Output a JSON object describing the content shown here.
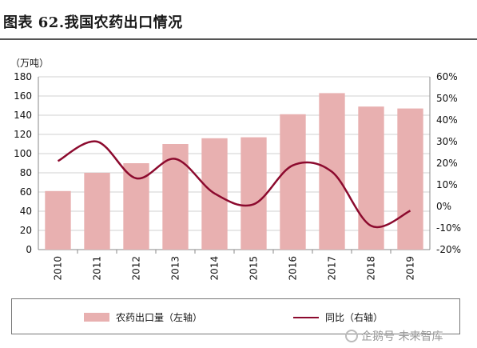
{
  "title": "图表 62.我国农药出口情况",
  "unit_label": "（万吨）",
  "watermark": "企鹅号 未来智库",
  "colors": {
    "bar": "#e8b0b0",
    "line": "#8c0a2e",
    "grid": "#d0d0d0",
    "axis": "#888888"
  },
  "legend": {
    "bar_label": "农药出口量（左轴）",
    "line_label": "同比（右轴）"
  },
  "chart_data": {
    "type": "bar",
    "categories": [
      "2010",
      "2011",
      "2012",
      "2013",
      "2014",
      "2015",
      "2016",
      "2017",
      "2018",
      "2019"
    ],
    "series": [
      {
        "name": "农药出口量（左轴）",
        "type": "bar",
        "axis": "left",
        "values": [
          61,
          80,
          90,
          110,
          116,
          117,
          141,
          163,
          149,
          147
        ]
      },
      {
        "name": "同比（右轴）",
        "type": "line",
        "axis": "right",
        "values": [
          21,
          30,
          13,
          22,
          6,
          1,
          19,
          16,
          -9,
          -2
        ]
      }
    ],
    "left_axis": {
      "ylim": [
        0,
        180
      ],
      "ticks": [
        "0",
        "20",
        "40",
        "60",
        "80",
        "100",
        "120",
        "140",
        "160",
        "180"
      ]
    },
    "right_axis": {
      "ylim": [
        -20,
        60
      ],
      "ticks": [
        "-20%",
        "-10%",
        "0%",
        "10%",
        "20%",
        "30%",
        "40%",
        "50%",
        "60%"
      ]
    },
    "grid": true,
    "legend_position": "bottom"
  }
}
